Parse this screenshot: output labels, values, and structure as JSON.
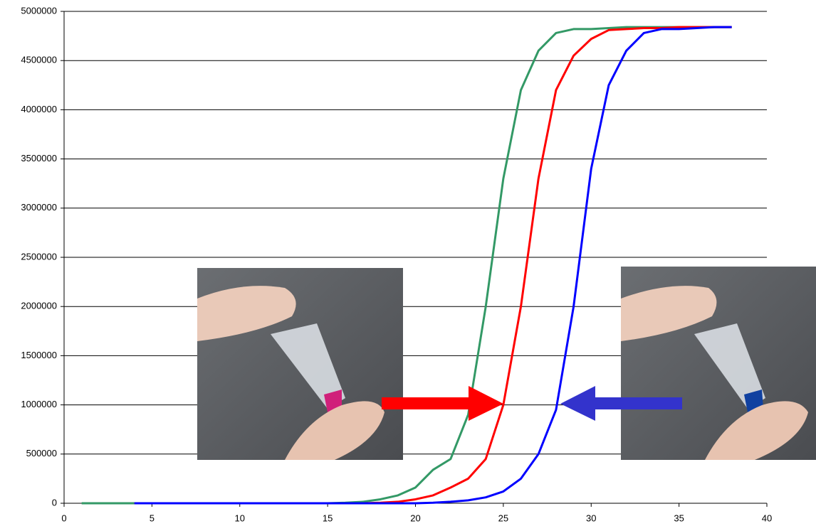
{
  "chart_data": {
    "type": "line",
    "x": [
      1,
      2,
      3,
      4,
      5,
      6,
      7,
      8,
      9,
      10,
      11,
      12,
      13,
      14,
      15,
      16,
      17,
      18,
      19,
      20,
      21,
      22,
      23,
      24,
      25,
      26,
      27,
      28,
      29,
      30,
      31,
      32,
      33,
      34,
      35,
      36,
      37,
      38
    ],
    "series": [
      {
        "color": "#339966",
        "values": [
          0,
          0,
          0,
          0,
          0,
          0,
          0,
          0,
          0,
          0,
          0,
          0,
          0,
          0,
          0,
          5000,
          15000,
          40000,
          80000,
          160000,
          340000,
          450000,
          900000,
          2000000,
          3300000,
          4200000,
          4600000,
          4780000,
          4820000,
          4820000,
          4830000,
          4840000,
          4840000,
          4840000,
          4840000,
          4840000,
          4840000,
          4840000
        ]
      },
      {
        "color": "#ff0000",
        "values": [
          null,
          null,
          null,
          0,
          0,
          0,
          0,
          0,
          0,
          0,
          0,
          0,
          0,
          0,
          0,
          0,
          0,
          5000,
          15000,
          40000,
          80000,
          160000,
          250000,
          450000,
          1000000,
          2000000,
          3300000,
          4200000,
          4550000,
          4720000,
          4810000,
          4820000,
          4830000,
          4830000,
          4840000,
          4840000,
          4840000,
          4840000
        ]
      },
      {
        "color": "#0000ff",
        "values": [
          null,
          null,
          null,
          0,
          0,
          0,
          0,
          0,
          0,
          0,
          0,
          0,
          0,
          0,
          0,
          0,
          0,
          0,
          0,
          0,
          5000,
          15000,
          30000,
          60000,
          120000,
          250000,
          500000,
          950000,
          2000000,
          3400000,
          4250000,
          4600000,
          4780000,
          4820000,
          4820000,
          4830000,
          4840000,
          4840000
        ]
      }
    ],
    "xlim": [
      0,
      40
    ],
    "xticks": [
      0,
      5,
      10,
      15,
      20,
      25,
      30,
      35,
      40
    ],
    "ylim": [
      0,
      5000000
    ],
    "yticks": [
      0,
      500000,
      1000000,
      1500000,
      2000000,
      2500000,
      3000000,
      3500000,
      4000000,
      4500000,
      5000000
    ],
    "grid": true
  }
}
